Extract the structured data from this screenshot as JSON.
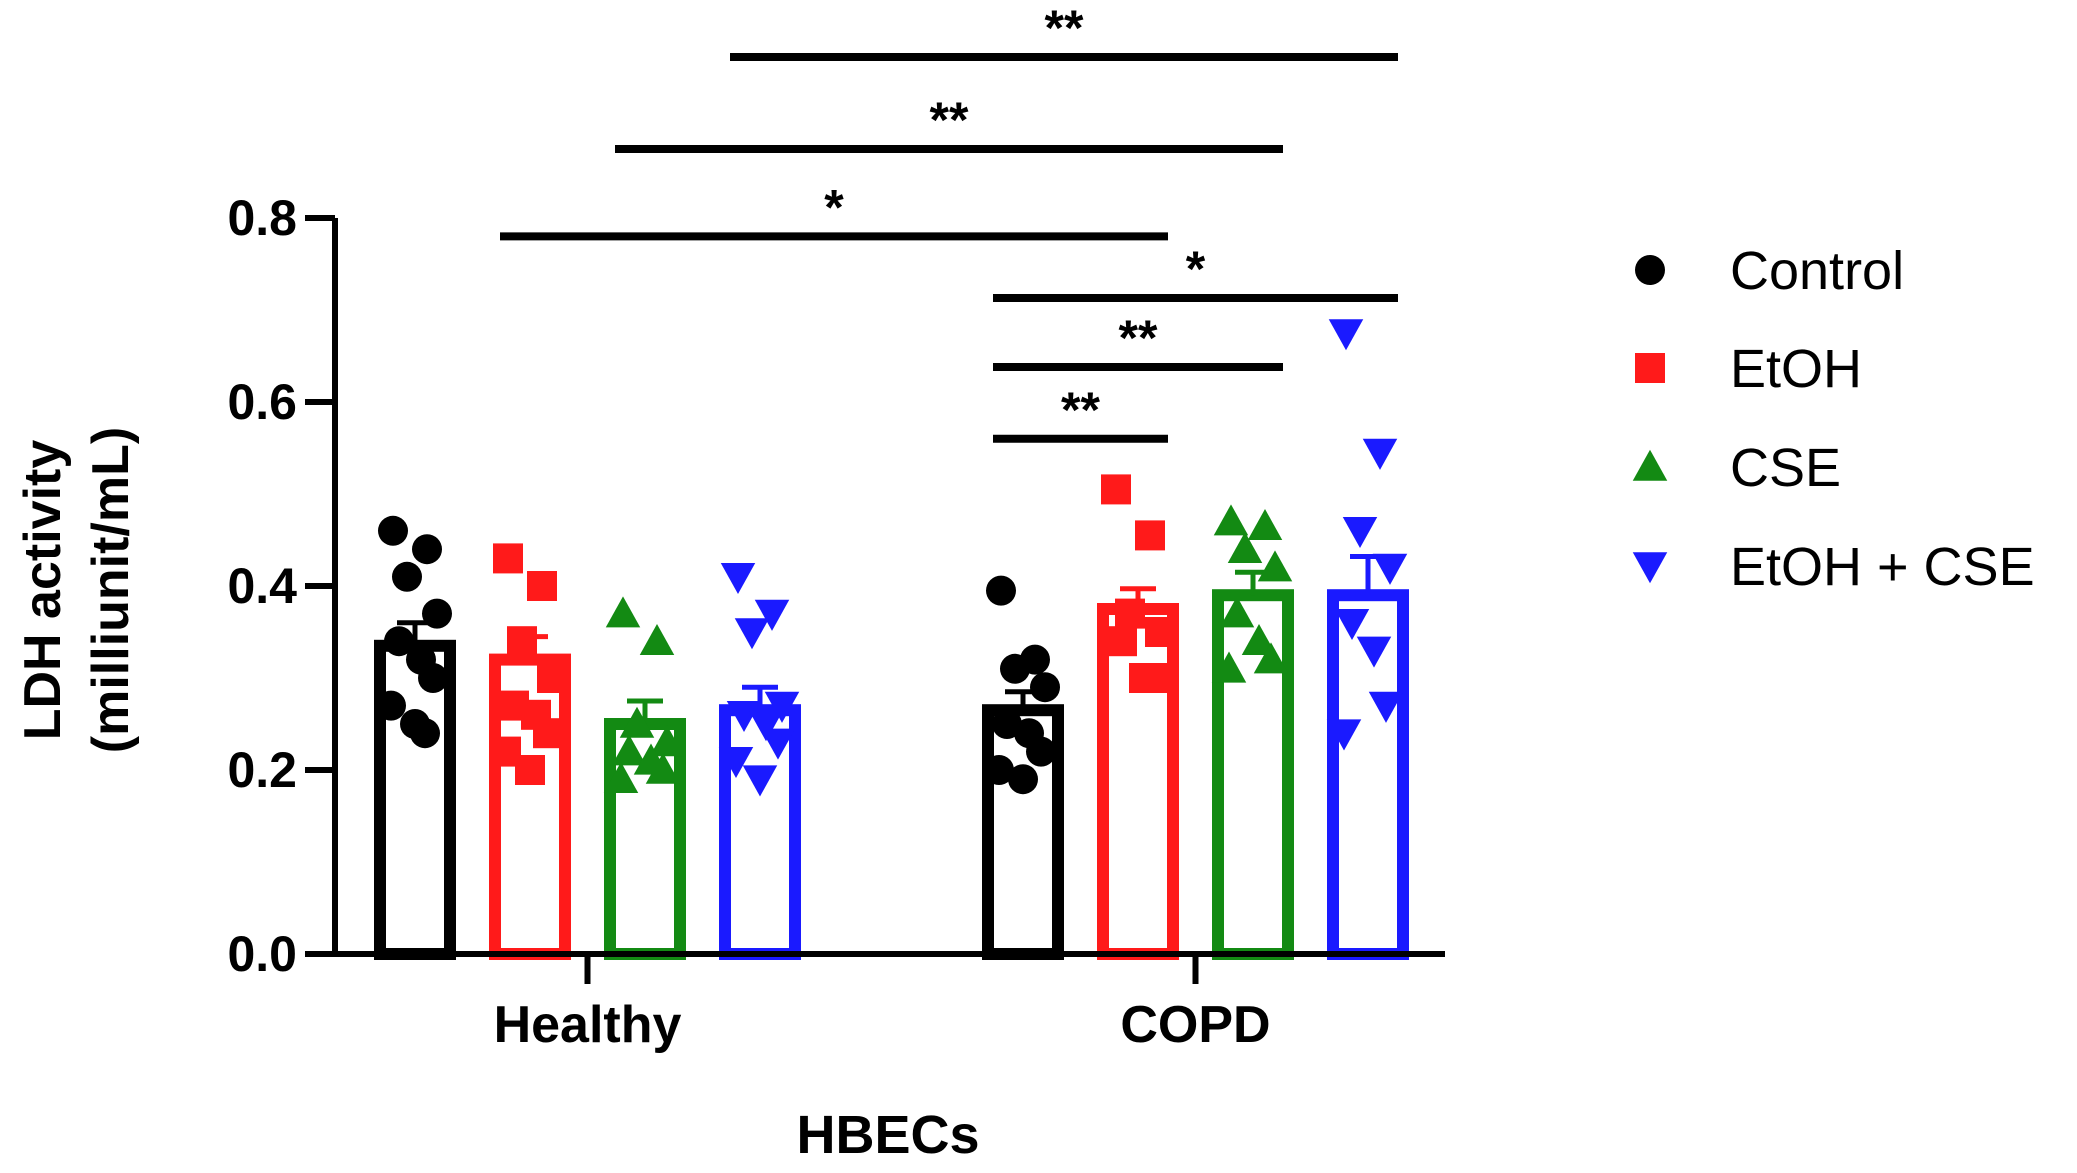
{
  "chart_data": {
    "type": "bar",
    "ylabel_line1": "LDH activity",
    "ylabel_line2": "(milliunit/mL)",
    "xlabel": "HBECs",
    "ylim": [
      0,
      0.8
    ],
    "yticks": [
      "0.0",
      "0.2",
      "0.4",
      "0.6",
      "0.8"
    ],
    "categories": [
      "Healthy",
      "COPD"
    ],
    "series": [
      {
        "name": "Control",
        "color": "#000000",
        "marker": "circle",
        "values": [
          0.335,
          0.265
        ],
        "errors": [
          0.025,
          0.02
        ],
        "points": [
          [
            0.46,
            0.44,
            0.41,
            0.37,
            0.34,
            0.32,
            0.3,
            0.27,
            0.25,
            0.24
          ],
          [
            0.395,
            0.32,
            0.31,
            0.29,
            0.25,
            0.24,
            0.22,
            0.2,
            0.19
          ]
        ]
      },
      {
        "name": "EtOH",
        "color": "#ff1a1a",
        "marker": "square",
        "values": [
          0.32,
          0.375
        ],
        "errors": [
          0.025,
          0.022
        ],
        "points": [
          [
            0.43,
            0.4,
            0.34,
            0.3,
            0.27,
            0.26,
            0.24,
            0.22,
            0.2
          ],
          [
            0.505,
            0.455,
            0.37,
            0.35,
            0.34,
            0.3,
            0.3
          ]
        ]
      },
      {
        "name": "CSE",
        "color": "#138a13",
        "marker": "triangle-up",
        "values": [
          0.25,
          0.39
        ],
        "errors": [
          0.025,
          0.025
        ],
        "points": [
          [
            0.37,
            0.34,
            0.25,
            0.23,
            0.22,
            0.21,
            0.2,
            0.19
          ],
          [
            0.47,
            0.465,
            0.44,
            0.42,
            0.37,
            0.34,
            0.32,
            0.31
          ]
        ]
      },
      {
        "name": "EtOH + CSE",
        "color": "#1a1aff",
        "marker": "triangle-down",
        "values": [
          0.265,
          0.39
        ],
        "errors": [
          0.025,
          0.042
        ],
        "points": [
          [
            0.41,
            0.37,
            0.35,
            0.27,
            0.26,
            0.25,
            0.23,
            0.21,
            0.19
          ],
          [
            0.675,
            0.545,
            0.46,
            0.42,
            0.36,
            0.33,
            0.27,
            0.24
          ]
        ]
      }
    ],
    "significance": [
      {
        "from_group": 0,
        "from_series": 1,
        "to_group": 1,
        "to_series": 1,
        "label": "*",
        "level": 0.78
      },
      {
        "from_group": 0,
        "from_series": 2,
        "to_group": 1,
        "to_series": 2,
        "label": "**",
        "level": 0.875
      },
      {
        "from_group": 0,
        "from_series": 3,
        "to_group": 1,
        "to_series": 3,
        "label": "**",
        "level": 0.975
      },
      {
        "from_group": 1,
        "from_series": 0,
        "to_group": 1,
        "to_series": 1,
        "label": "**",
        "level": 0.56
      },
      {
        "from_group": 1,
        "from_series": 0,
        "to_group": 1,
        "to_series": 2,
        "label": "**",
        "level": 0.638
      },
      {
        "from_group": 1,
        "from_series": 0,
        "to_group": 1,
        "to_series": 3,
        "label": "*",
        "level": 0.713
      }
    ]
  }
}
